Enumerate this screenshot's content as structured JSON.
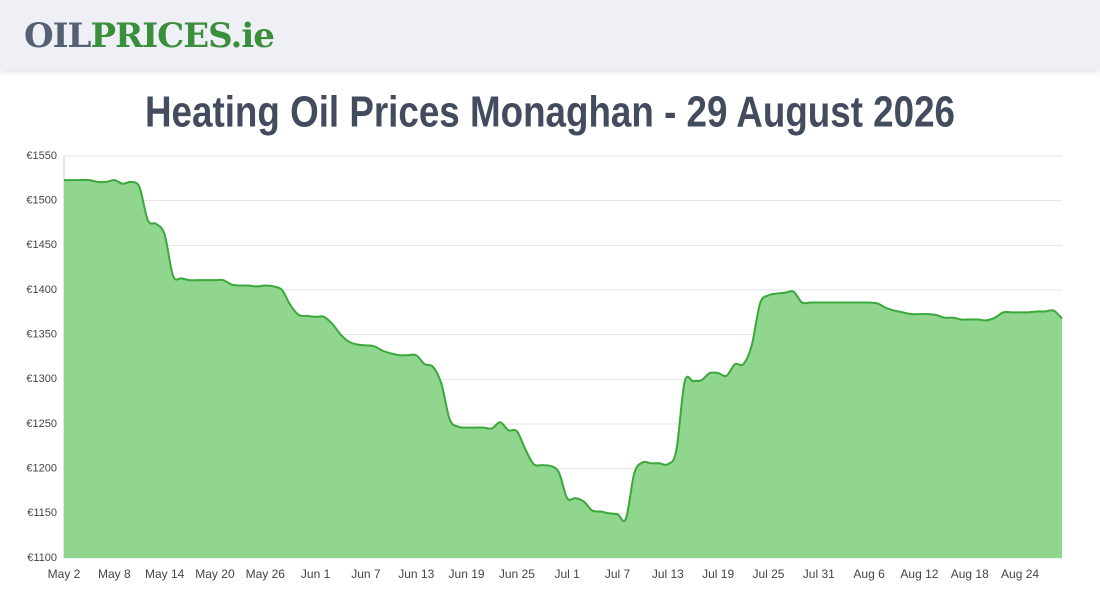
{
  "header": {
    "logo_part1": "OIL",
    "logo_part2": "PRICES.ie"
  },
  "chart_data": {
    "type": "area",
    "title": "Heating Oil Prices Monaghan - 29 August 2026",
    "categories": [
      "May 2",
      null,
      null,
      null,
      null,
      null,
      "May 8",
      null,
      null,
      null,
      null,
      null,
      "May 14",
      null,
      null,
      null,
      null,
      null,
      "May 20",
      null,
      null,
      null,
      null,
      null,
      "May 26",
      null,
      null,
      null,
      null,
      null,
      "Jun 1",
      null,
      null,
      null,
      null,
      null,
      "Jun 7",
      null,
      null,
      null,
      null,
      null,
      "Jun 13",
      null,
      null,
      null,
      null,
      null,
      "Jun 19",
      null,
      null,
      null,
      null,
      null,
      "Jun 25",
      null,
      null,
      null,
      null,
      null,
      "Jul 1",
      null,
      null,
      null,
      null,
      null,
      "Jul 7",
      null,
      null,
      null,
      null,
      null,
      "Jul 13",
      null,
      null,
      null,
      null,
      null,
      "Jul 19",
      null,
      null,
      null,
      null,
      null,
      "Jul 25",
      null,
      null,
      null,
      null,
      null,
      "Jul 31",
      null,
      null,
      null,
      null,
      null,
      "Aug 6",
      null,
      null,
      null,
      null,
      null,
      "Aug 12",
      null,
      null,
      null,
      null,
      null,
      "Aug 18",
      null,
      null,
      null,
      null,
      null,
      "Aug 24",
      null,
      null,
      null,
      null,
      null
    ],
    "values": [
      1523,
      1523,
      1523,
      1523,
      1521,
      1521,
      1523,
      1519,
      1521,
      1515,
      1478,
      1474,
      1462,
      1416,
      1413,
      1411,
      1411,
      1411,
      1411,
      1411,
      1406,
      1405,
      1405,
      1404,
      1405,
      1404,
      1400,
      1383,
      1372,
      1371,
      1370,
      1370,
      1362,
      1350,
      1342,
      1339,
      1338,
      1337,
      1332,
      1329,
      1327,
      1327,
      1327,
      1317,
      1314,
      1295,
      1255,
      1247,
      1246,
      1246,
      1246,
      1245,
      1252,
      1243,
      1242,
      1222,
      1205,
      1204,
      1203,
      1196,
      1167,
      1167,
      1163,
      1153,
      1152,
      1150,
      1149,
      1144,
      1195,
      1207,
      1206,
      1206,
      1205,
      1220,
      1297,
      1298,
      1299,
      1307,
      1307,
      1304,
      1317,
      1317,
      1338,
      1385,
      1394,
      1396,
      1397,
      1398,
      1386,
      1386,
      1386,
      1386,
      1386,
      1386,
      1386,
      1386,
      1386,
      1385,
      1380,
      1377,
      1375,
      1373,
      1373,
      1373,
      1372,
      1369,
      1369,
      1367,
      1367,
      1367,
      1366,
      1369,
      1375,
      1375,
      1375,
      1375,
      1376,
      1376,
      1377,
      1368
    ],
    "color": "#3aa83a",
    "fill_color": "#90d68f",
    "ylim": [
      1100,
      1550
    ],
    "yticks": [
      {
        "value": 1100,
        "label": "€1100"
      },
      {
        "value": 1150,
        "label": "€1150"
      },
      {
        "value": 1200,
        "label": "€1200"
      },
      {
        "value": 1250,
        "label": "€1250"
      },
      {
        "value": 1300,
        "label": "€1300"
      },
      {
        "value": 1350,
        "label": "€1350"
      },
      {
        "value": 1400,
        "label": "€1400"
      },
      {
        "value": 1450,
        "label": "€1450"
      },
      {
        "value": 1500,
        "label": "€1500"
      },
      {
        "value": 1550,
        "label": "€1550"
      }
    ],
    "grid": true
  }
}
